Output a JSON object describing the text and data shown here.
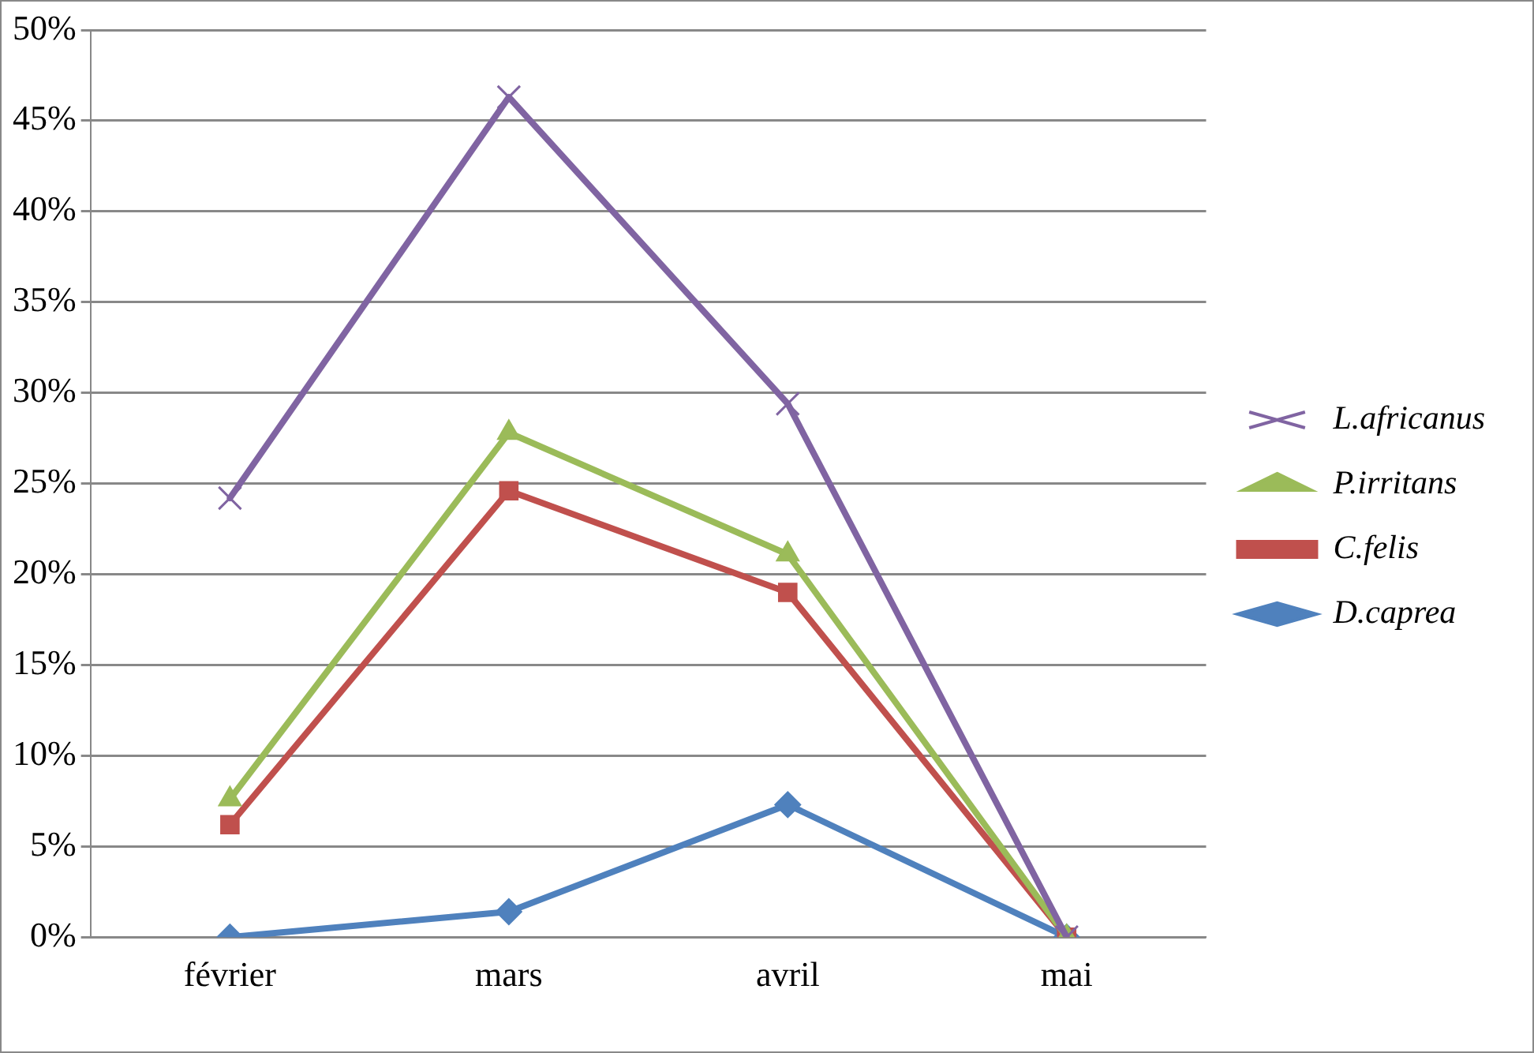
{
  "chart_data": {
    "type": "line",
    "categories": [
      "février",
      "mars",
      "avril",
      "mai"
    ],
    "series": [
      {
        "name": "L.africanus",
        "color": "#8064a2",
        "marker": "cross",
        "values": [
          24.2,
          46.3,
          29.4,
          0
        ]
      },
      {
        "name": "P.irritans",
        "color": "#9bbb59",
        "marker": "triangle",
        "values": [
          7.6,
          27.8,
          21.1,
          0
        ]
      },
      {
        "name": "C.felis",
        "color": "#c0504d",
        "marker": "square",
        "values": [
          6.2,
          24.6,
          19.0,
          0
        ]
      },
      {
        "name": "D.caprea",
        "color": "#4f81bd",
        "marker": "diamond",
        "values": [
          0,
          1.4,
          7.3,
          0
        ]
      }
    ],
    "ylim": [
      0,
      50
    ],
    "yticks": [
      {
        "value": 0,
        "label": "0%"
      },
      {
        "value": 5,
        "label": "5%"
      },
      {
        "value": 10,
        "label": "10%"
      },
      {
        "value": 15,
        "label": "15%"
      },
      {
        "value": 20,
        "label": "20%"
      },
      {
        "value": 25,
        "label": "25%"
      },
      {
        "value": 30,
        "label": "30%"
      },
      {
        "value": 35,
        "label": "35%"
      },
      {
        "value": 40,
        "label": "40%"
      },
      {
        "value": 45,
        "label": "45%"
      },
      {
        "value": 50,
        "label": "50%"
      }
    ],
    "grid": "y",
    "legend": "right",
    "line_style": "solid"
  }
}
